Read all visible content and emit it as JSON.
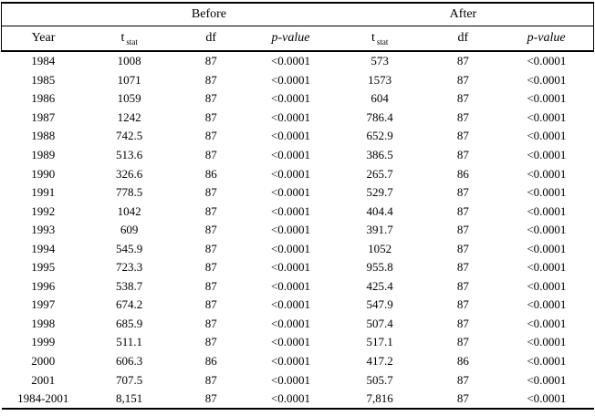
{
  "table": {
    "group_header": {
      "spacer": "",
      "before": "Before",
      "after": "After"
    },
    "columns": [
      {
        "text": "Year",
        "key": "year"
      },
      {
        "text": "t",
        "sub": "stat",
        "key": "t-stat-before"
      },
      {
        "text": "df",
        "key": "df-before"
      },
      {
        "text": "p-value",
        "italic": true,
        "key": "p-value-before"
      },
      {
        "text": "t",
        "sub": "stat",
        "key": "t-stat-after"
      },
      {
        "text": "df",
        "key": "df-after"
      },
      {
        "text": "p-value",
        "italic": true,
        "key": "p-value-after"
      }
    ],
    "rows": [
      [
        "1984",
        "1008",
        "87",
        "<0.0001",
        "573",
        "87",
        "<0.0001"
      ],
      [
        "1985",
        "1071",
        "87",
        "<0.0001",
        "1573",
        "87",
        "<0.0001"
      ],
      [
        "1986",
        "1059",
        "87",
        "<0.0001",
        "604",
        "87",
        "<0.0001"
      ],
      [
        "1987",
        "1242",
        "87",
        "<0.0001",
        "786.4",
        "87",
        "<0.0001"
      ],
      [
        "1988",
        "742.5",
        "87",
        "<0.0001",
        "652.9",
        "87",
        "<0.0001"
      ],
      [
        "1989",
        "513.6",
        "87",
        "<0.0001",
        "386.5",
        "87",
        "<0.0001"
      ],
      [
        "1990",
        "326.6",
        "86",
        "<0.0001",
        "265.7",
        "86",
        "<0.0001"
      ],
      [
        "1991",
        "778.5",
        "87",
        "<0.0001",
        "529.7",
        "87",
        "<0.0001"
      ],
      [
        "1992",
        "1042",
        "87",
        "<0.0001",
        "404.4",
        "87",
        "<0.0001"
      ],
      [
        "1993",
        "609",
        "87",
        "<0.0001",
        "391.7",
        "87",
        "<0.0001"
      ],
      [
        "1994",
        "545.9",
        "87",
        "<0.0001",
        "1052",
        "87",
        "<0.0001"
      ],
      [
        "1995",
        "723.3",
        "87",
        "<0.0001",
        "955.8",
        "87",
        "<0.0001"
      ],
      [
        "1996",
        "538.7",
        "87",
        "<0.0001",
        "425.4",
        "87",
        "<0.0001"
      ],
      [
        "1997",
        "674.2",
        "87",
        "<0.0001",
        "547.9",
        "87",
        "<0.0001"
      ],
      [
        "1998",
        "685.9",
        "87",
        "<0.0001",
        "507.4",
        "87",
        "<0.0001"
      ],
      [
        "1999",
        "511.1",
        "87",
        "<0.0001",
        "517.1",
        "87",
        "<0.0001"
      ],
      [
        "2000",
        "606.3",
        "86",
        "<0.0001",
        "417.2",
        "86",
        "<0.0001"
      ],
      [
        "2001",
        "707.5",
        "87",
        "<0.0001",
        "505.7",
        "87",
        "<0.0001"
      ],
      [
        "1984-2001",
        "8,151",
        "87",
        "<0.0001",
        "7,816",
        "87",
        "<0.0001"
      ]
    ]
  },
  "colors": {
    "text": "#000000",
    "rule": "#000000",
    "background": "#ffffff"
  }
}
